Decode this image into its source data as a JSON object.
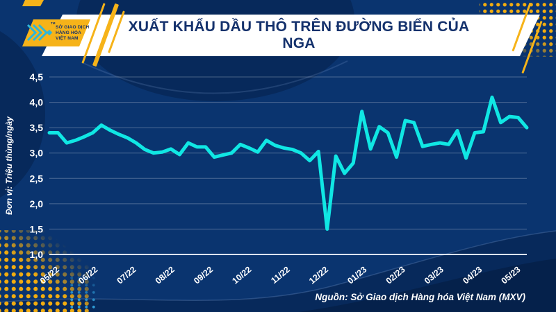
{
  "header": {
    "title": "XUẤT KHẨU DẦU THÔ TRÊN ĐƯỜNG BIỂN CỦA NGA",
    "logo": {
      "text_lines": [
        "SỞ GIAO DỊCH",
        "HÀNG HÓA",
        "VIỆT NAM"
      ],
      "trademark": "TM"
    }
  },
  "chart_data": {
    "type": "line",
    "title": "XUẤT KHẨU DẦU THÔ TRÊN ĐƯỜNG BIỂN CỦA NGA",
    "ylabel": "Đơn vị: Triệu thùng/ngày",
    "xlabel": "",
    "ylim": [
      1.0,
      4.5
    ],
    "grid": true,
    "legend": "none",
    "y_ticks": [
      {
        "label": "4,5",
        "value": 4.5
      },
      {
        "label": "4,0",
        "value": 4.0
      },
      {
        "label": "3,5",
        "value": 3.5
      },
      {
        "label": "3,0",
        "value": 3.0
      },
      {
        "label": "2,5",
        "value": 2.5
      },
      {
        "label": "2,0",
        "value": 2.0
      },
      {
        "label": "1,5",
        "value": 1.5
      },
      {
        "label": "1,0",
        "value": 1.0
      }
    ],
    "x_tick_labels": [
      "05/22",
      "06/22",
      "07/22",
      "08/22",
      "09/22",
      "10/22",
      "11/22",
      "12/22",
      "01/23",
      "02/23",
      "03/23",
      "04/23",
      "05/23"
    ],
    "values": [
      3.4,
      3.4,
      3.2,
      3.25,
      3.32,
      3.4,
      3.55,
      3.45,
      3.37,
      3.3,
      3.2,
      3.07,
      3.0,
      3.02,
      3.08,
      2.97,
      3.2,
      3.12,
      3.12,
      2.92,
      2.96,
      3.0,
      3.17,
      3.1,
      3.02,
      3.25,
      3.15,
      3.1,
      3.07,
      3.0,
      2.85,
      3.03,
      1.5,
      2.94,
      2.6,
      2.8,
      3.82,
      3.08,
      3.52,
      3.4,
      2.92,
      3.64,
      3.6,
      3.13,
      3.17,
      3.2,
      3.17,
      3.44,
      2.9,
      3.4,
      3.42,
      4.1,
      3.6,
      3.72,
      3.7,
      3.5
    ]
  },
  "footer": {
    "source": "Nguồn: Sở Giao dịch Hàng hóa Việt Nam (MXV)"
  },
  "colors": {
    "background": "#0A346F",
    "wave_dark": "#07295B",
    "wave_darkest": "#051F47",
    "accent_yellow": "#F6B319",
    "line_cyan": "#10E7E4",
    "title_navy": "#14316C",
    "logo_cyan": "#2FB5D9",
    "text_white": "#FFFFFF"
  }
}
